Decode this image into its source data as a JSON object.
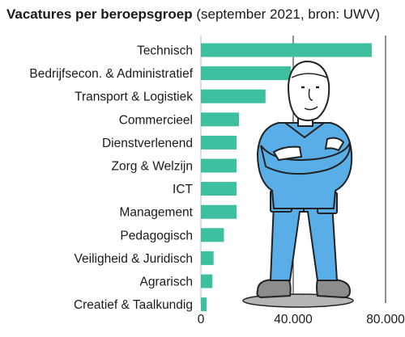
{
  "chart_data": {
    "type": "bar",
    "orientation": "horizontal",
    "title": "Vacatures per beroepsgroep",
    "subtitle": "(september 2021, bron: UWV)",
    "categories": [
      "Technisch",
      "Bedrijfsecon. & Administratief",
      "Transport & Logistiek",
      "Commercieel",
      "Dienstverlenend",
      "Zorg & Welzijn",
      "ICT",
      "Management",
      "Pedagogisch",
      "Veiligheid & Juridisch",
      "Agrarisch",
      "Creatief & Taalkundig"
    ],
    "values": [
      74000,
      39000,
      28000,
      16500,
      15500,
      15500,
      15500,
      15500,
      10000,
      5500,
      5000,
      2500
    ],
    "xlim": [
      0,
      80000
    ],
    "xticks": [
      0,
      40000,
      80000
    ],
    "xtick_labels": [
      "0",
      "40.000",
      "80.000"
    ],
    "grid": true,
    "bar_color": "#3dbfa0"
  },
  "illustration": {
    "name": "worker-with-crossed-arms",
    "colors": {
      "overall": "#5aaee8",
      "shoes": "#8c8c8c",
      "skin": "#ffffff"
    }
  }
}
